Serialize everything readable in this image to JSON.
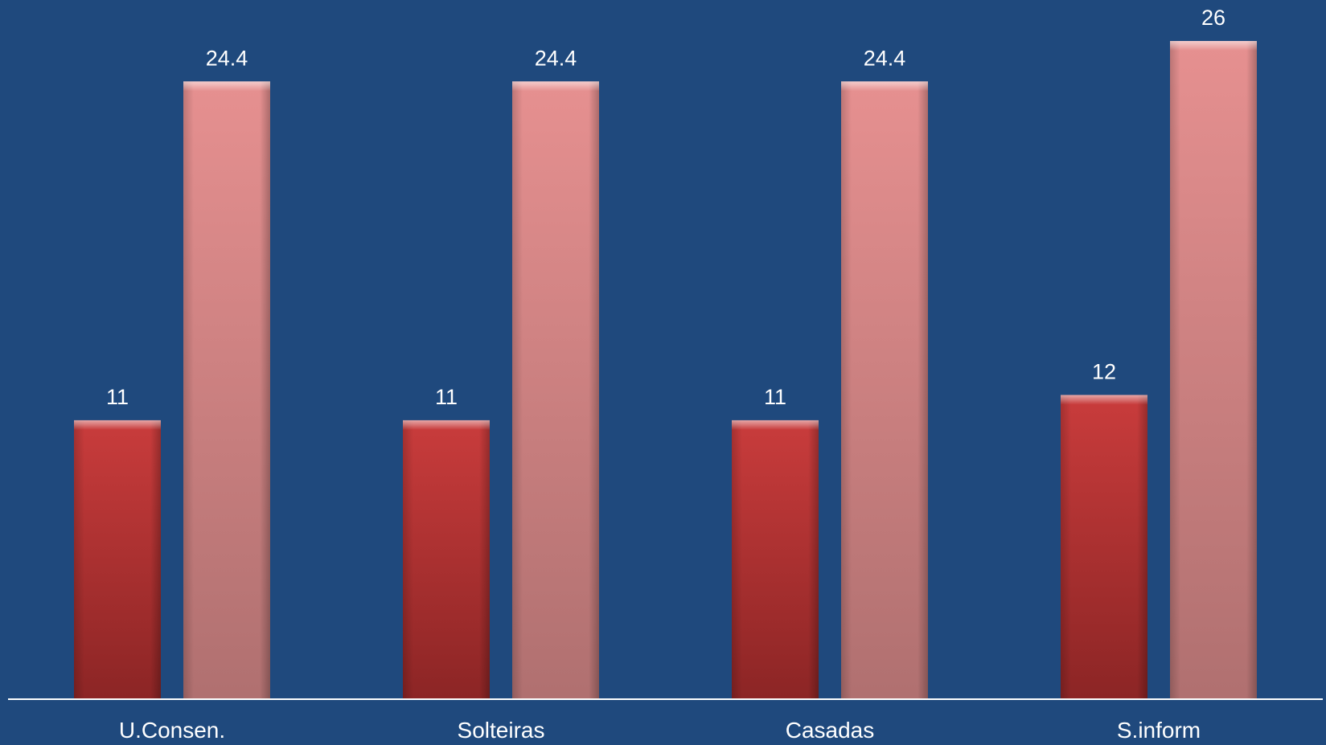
{
  "background_color": "#1f497d",
  "chart_data": {
    "type": "bar",
    "title": "",
    "xlabel": "",
    "ylabel": "",
    "categories": [
      "U.Consen.",
      "Solteiras",
      "Casadas",
      "S.inform"
    ],
    "series": [
      {
        "values": [
          11,
          11,
          11,
          12
        ],
        "color": "#c0383a"
      },
      {
        "values": [
          24.4,
          24.4,
          24.4,
          26
        ],
        "color": "#e08a8a"
      }
    ],
    "value_labels": [
      [
        "11",
        "11",
        "11",
        "12"
      ],
      [
        "24.4",
        "24.4",
        "24.4",
        "26"
      ]
    ],
    "ylim": [
      0,
      26
    ],
    "grid": false,
    "legend": "none"
  }
}
